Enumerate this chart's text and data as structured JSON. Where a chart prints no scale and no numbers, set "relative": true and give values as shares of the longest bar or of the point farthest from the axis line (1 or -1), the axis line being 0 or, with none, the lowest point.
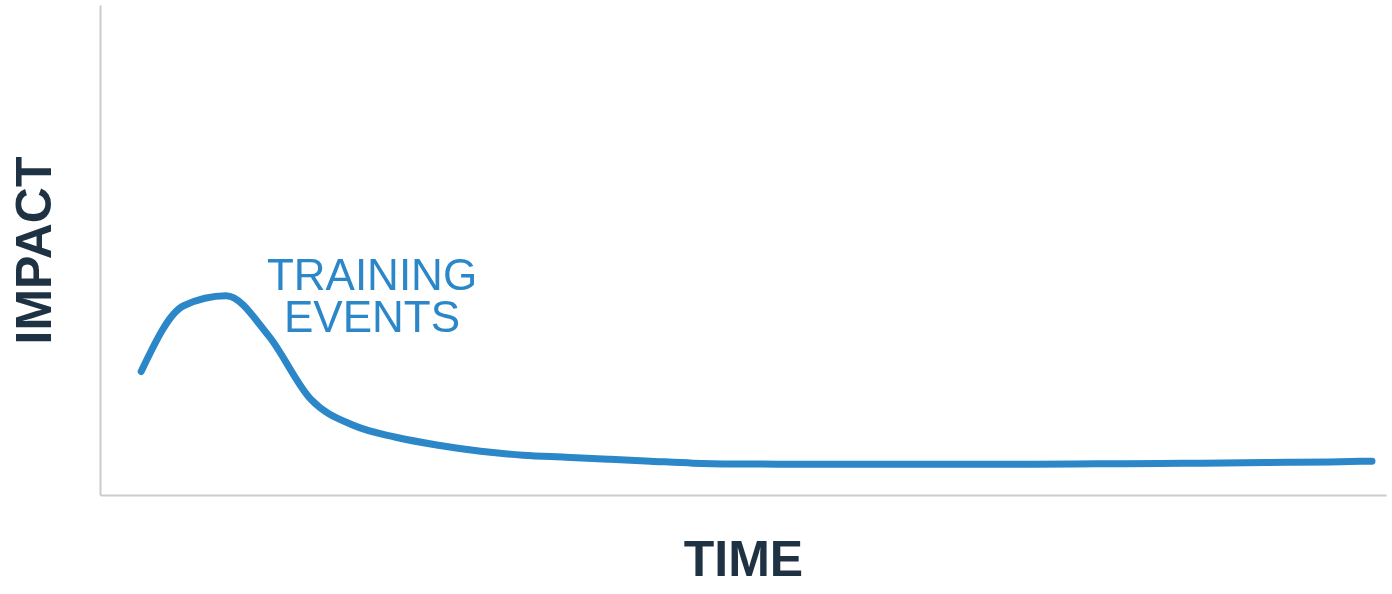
{
  "chart_data": {
    "type": "line",
    "relative": true,
    "xlabel": "TIME",
    "ylabel": "IMPACT",
    "annotations": [
      "TRAINING EVENTS"
    ],
    "marker": "none",
    "line_style": "solid",
    "categories": [
      null,
      null,
      null,
      null,
      null,
      null,
      null,
      null,
      null,
      null,
      null,
      null,
      null,
      null,
      null,
      null,
      null,
      null,
      null,
      null,
      null,
      null,
      null,
      null,
      null,
      null,
      null,
      null,
      null,
      null
    ],
    "series": [
      {
        "color": "#2b87c8",
        "values": [
          0.62,
          0.95,
          1.0,
          0.8,
          0.48,
          0.35,
          0.29,
          0.25,
          0.22,
          0.2,
          0.19,
          0.18,
          0.17,
          0.16,
          0.156,
          0.155,
          0.155,
          0.155,
          0.155,
          0.155,
          0.155,
          0.155,
          0.156,
          0.157,
          0.158,
          0.16,
          0.162,
          0.164,
          0.166,
          0.17
        ]
      }
    ]
  }
}
